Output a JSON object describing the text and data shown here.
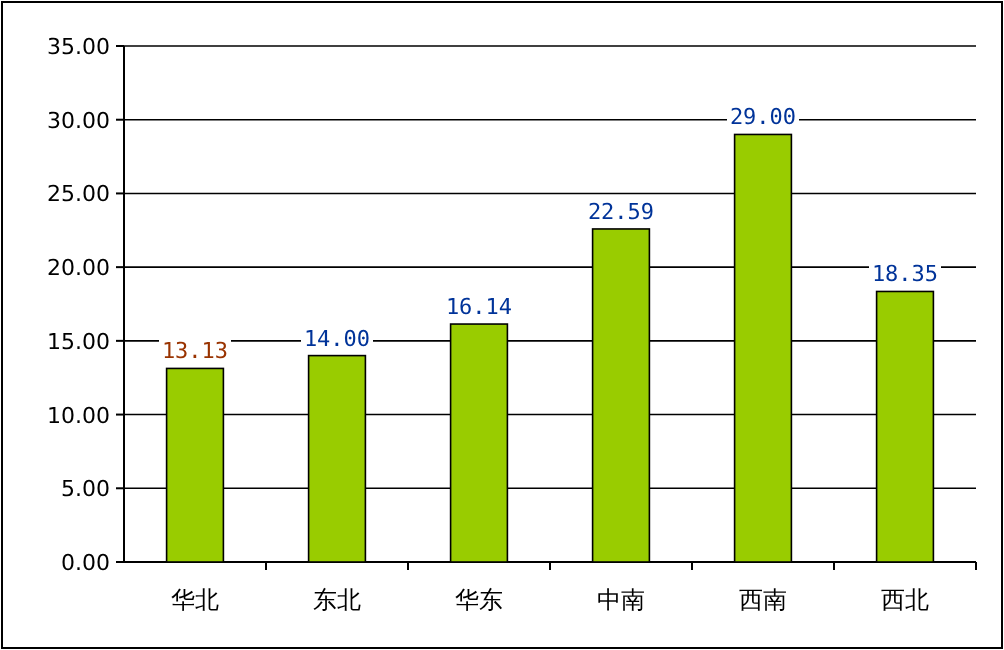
{
  "chart_data": {
    "type": "bar",
    "categories": [
      "华北",
      "东北",
      "华东",
      "中南",
      "西南",
      "西北"
    ],
    "values": [
      13.13,
      14.0,
      16.14,
      22.59,
      29.0,
      18.35
    ],
    "value_labels": [
      "13.13",
      "14.00",
      "16.14",
      "22.59",
      "29.00",
      "18.35"
    ],
    "color": "#99cc00",
    "ylim": [
      0,
      35
    ],
    "yticks": [
      {
        "value": 0,
        "label": "0.00"
      },
      {
        "value": 5,
        "label": "5.00"
      },
      {
        "value": 10,
        "label": "10.00"
      },
      {
        "value": 15,
        "label": "15.00"
      },
      {
        "value": 20,
        "label": "20.00"
      },
      {
        "value": 25,
        "label": "25.00"
      },
      {
        "value": 30,
        "label": "30.00"
      },
      {
        "value": 35,
        "label": "35.00"
      }
    ],
    "grid": "y"
  }
}
